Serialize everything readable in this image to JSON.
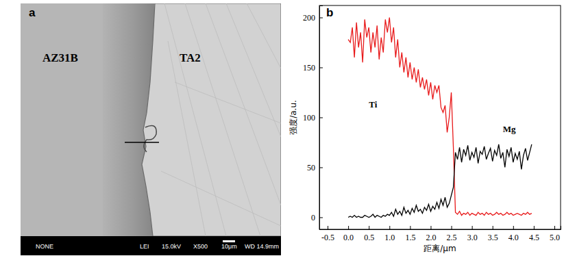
{
  "micrograph": {
    "panel_label": "a",
    "regions": [
      "AZ31B",
      "TA2"
    ],
    "info_bar": [
      "NONE",
      "LEI",
      "15.0kV",
      "X500",
      "10μm",
      "WD 14.9mm"
    ]
  },
  "chart_data": {
    "type": "line",
    "panel_label": "b",
    "x_label": "距离/μm",
    "y_label": "强度/a.u.",
    "x": [
      0.0,
      0.05,
      0.1,
      0.15,
      0.2,
      0.25,
      0.3,
      0.35,
      0.4,
      0.45,
      0.5,
      0.55,
      0.6,
      0.65,
      0.7,
      0.75,
      0.8,
      0.85,
      0.9,
      0.95,
      1.0,
      1.05,
      1.1,
      1.15,
      1.2,
      1.25,
      1.3,
      1.35,
      1.4,
      1.45,
      1.5,
      1.55,
      1.6,
      1.65,
      1.7,
      1.75,
      1.8,
      1.85,
      1.9,
      1.95,
      2.0,
      2.05,
      2.1,
      2.15,
      2.2,
      2.25,
      2.3,
      2.35,
      2.4,
      2.45,
      2.5,
      2.55,
      2.6,
      2.65,
      2.7,
      2.75,
      2.8,
      2.85,
      2.9,
      2.95,
      3.0,
      3.05,
      3.1,
      3.15,
      3.2,
      3.25,
      3.3,
      3.35,
      3.4,
      3.45,
      3.5,
      3.55,
      3.6,
      3.65,
      3.7,
      3.75,
      3.8,
      3.85,
      3.9,
      3.95,
      4.0,
      4.05,
      4.1,
      4.15,
      4.2,
      4.25,
      4.3,
      4.35,
      4.4,
      4.45
    ],
    "series": [
      {
        "color": "#e8191a",
        "values": [
          178,
          175,
          190,
          160,
          195,
          170,
          185,
          155,
          198,
          180,
          190,
          165,
          185,
          170,
          192,
          158,
          180,
          165,
          198,
          185,
          200,
          175,
          190,
          160,
          178,
          150,
          165,
          145,
          160,
          140,
          155,
          138,
          150,
          135,
          148,
          130,
          140,
          128,
          138,
          122,
          135,
          118,
          132,
          125,
          132,
          110,
          105,
          112,
          85,
          100,
          125,
          70,
          5,
          3,
          6,
          2,
          4,
          3,
          5,
          2,
          4,
          3,
          2,
          5,
          3,
          4,
          2,
          5,
          3,
          4,
          2,
          3,
          5,
          3,
          4,
          2,
          3,
          5,
          3,
          4,
          2,
          3,
          4,
          3,
          2,
          4,
          3,
          5,
          3,
          4
        ]
      },
      {
        "color": "#000000",
        "values": [
          0,
          1,
          0,
          2,
          0,
          1,
          0,
          0,
          2,
          1,
          0,
          1,
          3,
          0,
          2,
          1,
          0,
          2,
          1,
          3,
          2,
          5,
          1,
          8,
          3,
          6,
          2,
          10,
          4,
          7,
          3,
          9,
          5,
          12,
          6,
          8,
          4,
          10,
          7,
          13,
          6,
          11,
          8,
          15,
          9,
          18,
          12,
          20,
          10,
          14,
          22,
          30,
          65,
          58,
          70,
          55,
          68,
          62,
          72,
          57,
          65,
          60,
          70,
          54,
          66,
          63,
          71,
          58,
          64,
          69,
          56,
          67,
          62,
          73,
          59,
          65,
          50,
          68,
          61,
          70,
          55,
          64,
          58,
          66,
          48,
          62,
          69,
          57,
          65,
          73
        ]
      }
    ],
    "annotations": [
      {
        "text": "Ti",
        "x": 0.5,
        "y": 110
      },
      {
        "text": "Mg",
        "x": 3.75,
        "y": 85
      }
    ],
    "xlim": [
      -0.7,
      5.15
    ],
    "xticks": [
      {
        "value": -0.5,
        "label": "-0.5"
      },
      {
        "value": 0,
        "label": "0.0"
      },
      {
        "value": 0.5,
        "label": "0.5"
      },
      {
        "value": 1,
        "label": "1.0"
      },
      {
        "value": 1.5,
        "label": "1.5"
      },
      {
        "value": 2,
        "label": "2.0"
      },
      {
        "value": 2.5,
        "label": "2.5"
      },
      {
        "value": 3,
        "label": "3.0"
      },
      {
        "value": 3.5,
        "label": "3.5"
      },
      {
        "value": 4,
        "label": "4.0"
      },
      {
        "value": 4.5,
        "label": "4.5"
      },
      {
        "value": 5,
        "label": "5.0"
      }
    ],
    "ylim": [
      -12,
      212
    ],
    "yticks": [
      0,
      50,
      100,
      150,
      200
    ],
    "grid": false
  }
}
